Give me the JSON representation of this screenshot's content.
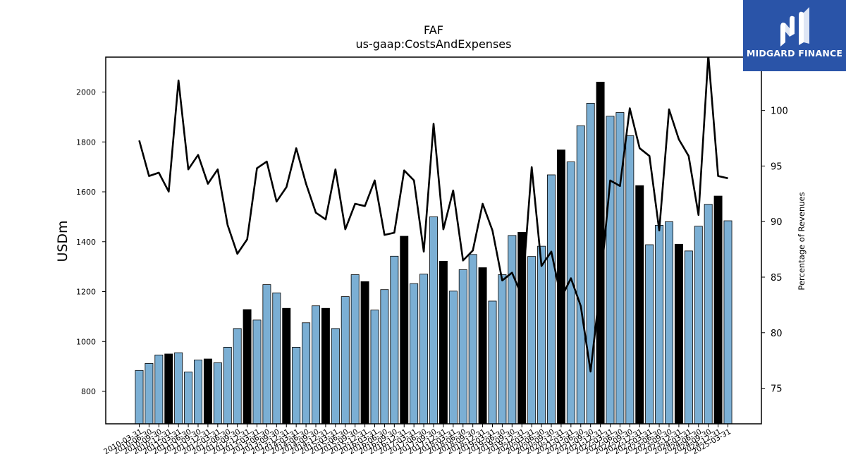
{
  "chart_data": {
    "type": "bar+line",
    "title": "FAF",
    "subtitle": "us-gaap:CostsAndExpenses",
    "ylabel_left": "USDm",
    "ylabel_right": "Percentage of Revenues",
    "ylim_left": [
      670,
      2140
    ],
    "ylim_right": [
      71.8,
      104.8
    ],
    "yticks_left": [
      800,
      1000,
      1200,
      1400,
      1600,
      1800,
      2000
    ],
    "yticks_right": [
      75,
      80,
      85,
      90,
      95,
      100
    ],
    "grid": false,
    "colors": {
      "bar": "#7bafd4",
      "bar_q4": "#000000",
      "line": "#000000",
      "edge": "#000000"
    },
    "categories": [
      "2010-03-31",
      "2010-06-30",
      "2010-09-30",
      "2010-12-31",
      "2011-03-31",
      "2011-06-30",
      "2011-09-30",
      "2011-12-31",
      "2012-03-31",
      "2012-06-30",
      "2012-09-30",
      "2012-12-31",
      "2013-03-31",
      "2013-06-30",
      "2013-09-30",
      "2013-12-31",
      "2014-03-31",
      "2014-06-30",
      "2014-09-30",
      "2014-12-31",
      "2015-03-31",
      "2015-06-30",
      "2015-09-30",
      "2015-12-31",
      "2016-03-31",
      "2016-06-30",
      "2016-09-30",
      "2016-12-31",
      "2017-03-31",
      "2017-06-30",
      "2017-09-30",
      "2017-12-31",
      "2018-03-31",
      "2018-06-30",
      "2018-09-30",
      "2018-12-31",
      "2019-03-31",
      "2019-06-30",
      "2019-09-30",
      "2019-12-31",
      "2020-03-31",
      "2020-06-30",
      "2020-09-30",
      "2020-12-31",
      "2021-03-31",
      "2021-06-30",
      "2021-09-30",
      "2021-12-31",
      "2022-03-31",
      "2022-06-30",
      "2022-09-30",
      "2022-12-31",
      "2023-03-31",
      "2023-06-30",
      "2023-09-30",
      "2023-12-31",
      "2024-03-31",
      "2024-06-30",
      "2024-09-30",
      "2024-12-31",
      "2025-03-31"
    ],
    "series": [
      {
        "type": "bar",
        "values": [
          884,
          912,
          946,
          950,
          955,
          878,
          926,
          930,
          915,
          977,
          1052,
          1128,
          1086,
          1228,
          1195,
          1133,
          977,
          1075,
          1143,
          1133,
          1052,
          1180,
          1268,
          1240,
          1126,
          1208,
          1342,
          1422,
          1232,
          1270,
          1500,
          1322,
          1202,
          1288,
          1349,
          1296,
          1162,
          1268,
          1425,
          1438,
          1341,
          1382,
          1668,
          1768,
          1720,
          1865,
          1955,
          2040,
          1903,
          1918,
          1825,
          1625,
          1388,
          1466,
          1480,
          1390,
          1363,
          1462,
          1550,
          1583,
          1484
        ]
      },
      {
        "type": "line",
        "axis": "right",
        "values": [
          97.3,
          94.1,
          94.4,
          92.7,
          102.7,
          94.7,
          96.0,
          93.4,
          94.7,
          89.7,
          87.1,
          88.4,
          94.8,
          95.4,
          91.8,
          93.1,
          96.6,
          93.4,
          90.8,
          90.2,
          94.7,
          89.3,
          91.6,
          91.4,
          93.7,
          88.8,
          89.0,
          94.6,
          93.7,
          87.3,
          98.8,
          89.3,
          92.8,
          86.5,
          87.4,
          91.6,
          89.2,
          84.7,
          85.4,
          83.3,
          94.9,
          86.0,
          87.3,
          83.1,
          84.9,
          82.4,
          76.5,
          84.3,
          93.7,
          93.2,
          100.2,
          96.6,
          95.9,
          89.2,
          100.1,
          97.4,
          95.9,
          90.6,
          105.0,
          94.1,
          93.9
        ]
      }
    ]
  },
  "brand": {
    "name": "MIDGARD FINANCE"
  }
}
